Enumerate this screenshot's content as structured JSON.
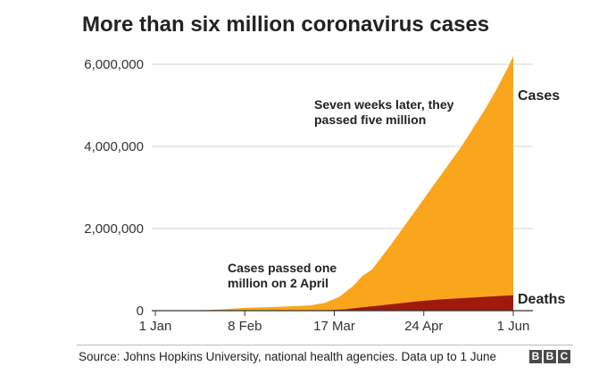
{
  "chart_data": {
    "type": "area",
    "title": "More than six million coronavirus cases",
    "xlabel": "",
    "ylabel": "",
    "x_tick_labels": [
      "1 Jan",
      "8 Feb",
      "17 Mar",
      "24 Apr",
      "1 Jun"
    ],
    "y_tick_labels": [
      "6,000,000",
      "4,000,000",
      "2,000,000",
      "0"
    ],
    "y_ticks": [
      6000000,
      4000000,
      2000000,
      0
    ],
    "ylim": [
      0,
      6000000
    ],
    "x_range_days": [
      0,
      152
    ],
    "x_tick_days": [
      0,
      38,
      76,
      114,
      152
    ],
    "grid": true,
    "series": [
      {
        "name": "Cases",
        "color": "#f9a61c",
        "points": [
          [
            0,
            0
          ],
          [
            10,
            2000
          ],
          [
            22,
            12000
          ],
          [
            32,
            45000
          ],
          [
            40,
            75000
          ],
          [
            50,
            90000
          ],
          [
            60,
            110000
          ],
          [
            66,
            130000
          ],
          [
            72,
            190000
          ],
          [
            78,
            330000
          ],
          [
            84,
            600000
          ],
          [
            88,
            850000
          ],
          [
            92,
            1000000
          ],
          [
            100,
            1600000
          ],
          [
            110,
            2400000
          ],
          [
            120,
            3200000
          ],
          [
            130,
            4000000
          ],
          [
            140,
            4900000
          ],
          [
            145,
            5400000
          ],
          [
            150,
            5950000
          ],
          [
            152,
            6200000
          ]
        ]
      },
      {
        "name": "Deaths",
        "color": "#9d1a0c",
        "points": [
          [
            0,
            0
          ],
          [
            60,
            2000
          ],
          [
            72,
            8000
          ],
          [
            80,
            30000
          ],
          [
            88,
            80000
          ],
          [
            96,
            130000
          ],
          [
            104,
            180000
          ],
          [
            112,
            230000
          ],
          [
            120,
            270000
          ],
          [
            132,
            310000
          ],
          [
            144,
            350000
          ],
          [
            152,
            375000
          ]
        ]
      }
    ],
    "annotations": [
      {
        "lines": [
          "Seven weeks later, they",
          "passed five million"
        ]
      },
      {
        "lines": [
          "Cases passed one",
          "million on 2 April"
        ]
      }
    ],
    "source": "Source: Johns Hopkins University, national health agencies. Data up to 1 June",
    "logo_letters": [
      "B",
      "B",
      "C"
    ]
  }
}
